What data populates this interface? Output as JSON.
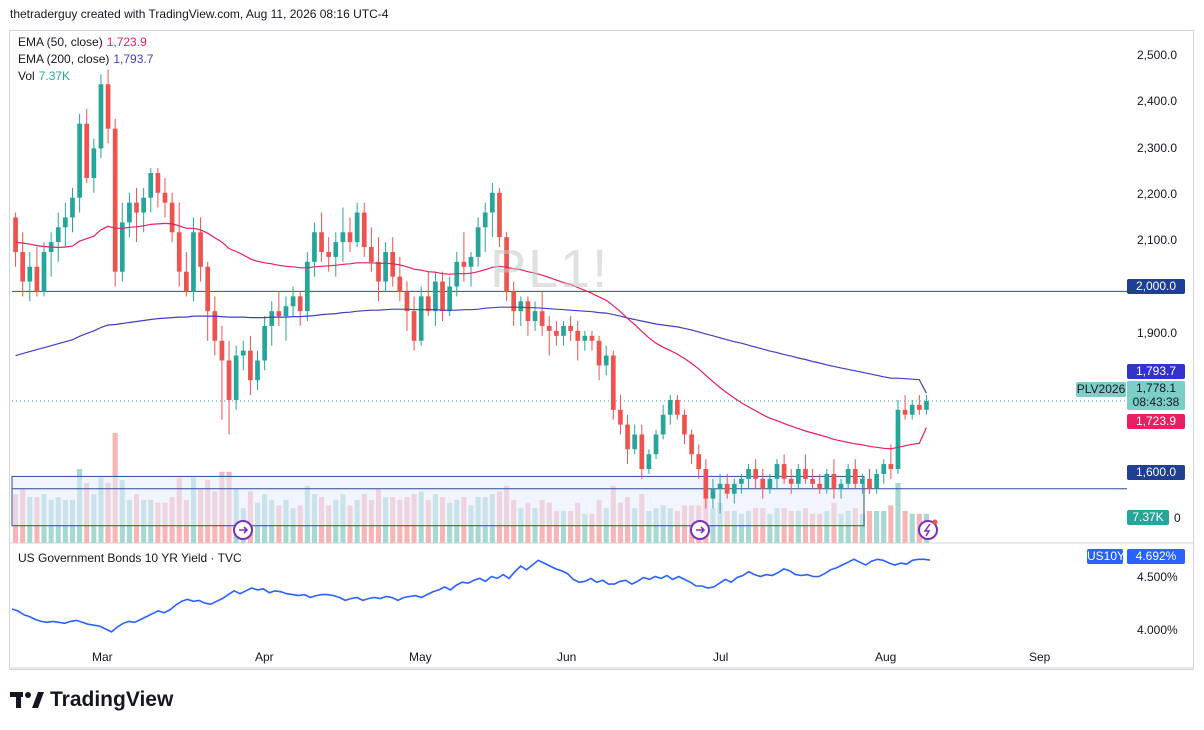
{
  "header": {
    "text": "thetraderguy created with TradingView.com, Aug 11, 2026 08:16 UTC-4"
  },
  "watermark": "PL1!",
  "legend": {
    "ema50": {
      "label": "EMA (50, close)",
      "value": "1,723.9",
      "color": "#e91e63"
    },
    "ema200": {
      "label": "EMA (200, close)",
      "value": "1,793.7",
      "color": "#3f3fc4"
    },
    "vol": {
      "label": "Vol",
      "value": "7.37K",
      "color": "#26a69a"
    }
  },
  "price_axis": {
    "ticks": [
      "2,500.0",
      "2,400.0",
      "2,300.0",
      "2,200.0",
      "2,100.0",
      "1,900.0"
    ],
    "tags": {
      "level_2000": "2,000.0",
      "ema200": "1,793.7",
      "last": "1,778.1",
      "countdown": "08:43:38",
      "ema50": "1,723.9",
      "level_1600": "1,600.0",
      "vol": "7.37K",
      "vol_suffix": "0"
    },
    "symbol_tag": "PLV2026"
  },
  "time_axis": {
    "labels": [
      "Mar",
      "Apr",
      "May",
      "Jun",
      "Jul",
      "Aug",
      "Sep"
    ]
  },
  "lower_pane": {
    "title": "US Government Bonds 10 YR Yield · TVC",
    "symbol_tag": "US10Y",
    "last_value": "4.692%",
    "ticks": [
      "4.500%",
      "4.000%"
    ]
  },
  "footer": {
    "brand": "TradingView"
  },
  "colors": {
    "up": "#26a69a",
    "down": "#ef5350",
    "vol_up": "#a7d8d2",
    "vol_down": "#f7b6b5",
    "ema50": "#e91e63",
    "ema200": "#3f3fc4",
    "hline": "#2a4d9b",
    "yield": "#2962ff"
  },
  "chart_data": [
    {
      "type": "candlestick",
      "symbol": "PL1!",
      "ylim": [
        1490,
        2530
      ],
      "y_ticks": [
        1600,
        1900,
        2000,
        2100,
        2200,
        2300,
        2400,
        2500
      ],
      "x_labels": [
        "Mar",
        "Apr",
        "May",
        "Jun",
        "Jul",
        "Aug",
        "Sep"
      ],
      "horizontal_lines": [
        2000,
        1600,
        1625,
        1525
      ],
      "ohlc": [
        [
          2150,
          2160,
          2050,
          2080
        ],
        [
          2080,
          2120,
          1990,
          2020
        ],
        [
          2020,
          2080,
          1980,
          2050
        ],
        [
          2050,
          2090,
          1990,
          2000
        ],
        [
          2000,
          2100,
          1990,
          2080
        ],
        [
          2080,
          2120,
          2030,
          2100
        ],
        [
          2100,
          2160,
          2060,
          2130
        ],
        [
          2130,
          2180,
          2090,
          2150
        ],
        [
          2150,
          2210,
          2120,
          2190
        ],
        [
          2190,
          2360,
          2160,
          2340
        ],
        [
          2340,
          2370,
          2220,
          2230
        ],
        [
          2230,
          2310,
          2200,
          2290
        ],
        [
          2290,
          2440,
          2270,
          2420
        ],
        [
          2420,
          2450,
          2300,
          2330
        ],
        [
          2330,
          2350,
          2010,
          2040
        ],
        [
          2040,
          2180,
          2020,
          2140
        ],
        [
          2140,
          2200,
          2110,
          2180
        ],
        [
          2180,
          2210,
          2100,
          2160
        ],
        [
          2160,
          2210,
          2120,
          2190
        ],
        [
          2190,
          2250,
          2160,
          2240
        ],
        [
          2240,
          2250,
          2170,
          2200
        ],
        [
          2200,
          2230,
          2150,
          2180
        ],
        [
          2180,
          2200,
          2100,
          2120
        ],
        [
          2120,
          2180,
          2010,
          2040
        ],
        [
          2040,
          2080,
          1990,
          2000
        ],
        [
          2000,
          2150,
          1980,
          2120
        ],
        [
          2120,
          2150,
          2020,
          2050
        ],
        [
          2050,
          2060,
          1900,
          1960
        ],
        [
          1960,
          1990,
          1870,
          1900
        ],
        [
          1900,
          1930,
          1740,
          1860
        ],
        [
          1860,
          1900,
          1710,
          1780
        ],
        [
          1780,
          1890,
          1760,
          1870
        ],
        [
          1870,
          1900,
          1840,
          1880
        ],
        [
          1880,
          1910,
          1790,
          1820
        ],
        [
          1820,
          1880,
          1800,
          1860
        ],
        [
          1860,
          1950,
          1840,
          1930
        ],
        [
          1930,
          1980,
          1890,
          1960
        ],
        [
          1960,
          2000,
          1930,
          1950
        ],
        [
          1950,
          1990,
          1900,
          1970
        ],
        [
          1970,
          2010,
          1950,
          1990
        ],
        [
          1990,
          2000,
          1930,
          1960
        ],
        [
          1960,
          2080,
          1940,
          2060
        ],
        [
          2060,
          2140,
          2030,
          2120
        ],
        [
          2120,
          2160,
          2060,
          2080
        ],
        [
          2080,
          2110,
          2040,
          2070
        ],
        [
          2070,
          2120,
          2030,
          2100
        ],
        [
          2100,
          2170,
          2060,
          2120
        ],
        [
          2120,
          2150,
          2080,
          2100
        ],
        [
          2100,
          2180,
          2090,
          2160
        ],
        [
          2160,
          2180,
          2070,
          2090
        ],
        [
          2090,
          2130,
          2040,
          2060
        ],
        [
          2060,
          2110,
          1980,
          2020
        ],
        [
          2020,
          2100,
          2000,
          2080
        ],
        [
          2080,
          2110,
          2010,
          2030
        ],
        [
          2030,
          2070,
          1980,
          2000
        ],
        [
          2000,
          2020,
          1920,
          1960
        ],
        [
          1960,
          1990,
          1880,
          1900
        ],
        [
          1900,
          2010,
          1890,
          1990
        ],
        [
          1990,
          2040,
          1950,
          1960
        ],
        [
          1960,
          2040,
          1930,
          2020
        ],
        [
          2020,
          2040,
          1940,
          1960
        ],
        [
          1960,
          2030,
          1950,
          2010
        ],
        [
          2010,
          2080,
          1990,
          2060
        ],
        [
          2060,
          2120,
          2020,
          2050
        ],
        [
          2050,
          2080,
          2010,
          2070
        ],
        [
          2070,
          2150,
          2050,
          2130
        ],
        [
          2130,
          2180,
          2080,
          2160
        ],
        [
          2160,
          2220,
          2110,
          2200
        ],
        [
          2200,
          2210,
          2090,
          2110
        ],
        [
          2110,
          2120,
          1980,
          2000
        ],
        [
          2000,
          2020,
          1930,
          1960
        ],
        [
          1960,
          1990,
          1930,
          1980
        ],
        [
          1980,
          1990,
          1910,
          1940
        ],
        [
          1940,
          1980,
          1920,
          1960
        ],
        [
          1960,
          2000,
          1910,
          1930
        ],
        [
          1930,
          1950,
          1870,
          1920
        ],
        [
          1920,
          1940,
          1890,
          1910
        ],
        [
          1910,
          1940,
          1890,
          1930
        ],
        [
          1930,
          1950,
          1900,
          1920
        ],
        [
          1920,
          1940,
          1860,
          1900
        ],
        [
          1900,
          1920,
          1880,
          1910
        ],
        [
          1910,
          1920,
          1880,
          1900
        ],
        [
          1900,
          1910,
          1820,
          1850
        ],
        [
          1850,
          1890,
          1830,
          1870
        ],
        [
          1870,
          1880,
          1740,
          1760
        ],
        [
          1760,
          1790,
          1710,
          1730
        ],
        [
          1730,
          1750,
          1650,
          1680
        ],
        [
          1680,
          1730,
          1670,
          1710
        ],
        [
          1710,
          1730,
          1620,
          1640
        ],
        [
          1640,
          1680,
          1630,
          1670
        ],
        [
          1670,
          1720,
          1660,
          1710
        ],
        [
          1710,
          1770,
          1700,
          1750
        ],
        [
          1750,
          1790,
          1730,
          1780
        ],
        [
          1780,
          1790,
          1740,
          1750
        ],
        [
          1750,
          1760,
          1690,
          1710
        ],
        [
          1710,
          1720,
          1650,
          1670
        ],
        [
          1670,
          1690,
          1620,
          1640
        ],
        [
          1640,
          1660,
          1560,
          1580
        ],
        [
          1580,
          1620,
          1560,
          1600
        ],
        [
          1600,
          1630,
          1550,
          1610
        ],
        [
          1610,
          1630,
          1580,
          1590
        ],
        [
          1590,
          1620,
          1570,
          1610
        ],
        [
          1610,
          1630,
          1590,
          1620
        ],
        [
          1620,
          1650,
          1600,
          1640
        ],
        [
          1640,
          1660,
          1600,
          1620
        ],
        [
          1620,
          1640,
          1580,
          1600
        ],
        [
          1600,
          1630,
          1590,
          1620
        ],
        [
          1620,
          1660,
          1600,
          1650
        ],
        [
          1650,
          1670,
          1610,
          1620
        ],
        [
          1620,
          1640,
          1590,
          1610
        ],
        [
          1610,
          1650,
          1600,
          1640
        ],
        [
          1640,
          1670,
          1610,
          1620
        ],
        [
          1620,
          1640,
          1600,
          1610
        ],
        [
          1610,
          1630,
          1590,
          1600
        ],
        [
          1600,
          1640,
          1590,
          1630
        ],
        [
          1630,
          1660,
          1580,
          1600
        ],
        [
          1600,
          1620,
          1580,
          1610
        ],
        [
          1610,
          1650,
          1600,
          1640
        ],
        [
          1640,
          1660,
          1600,
          1610
        ],
        [
          1610,
          1630,
          1590,
          1620
        ],
        [
          1620,
          1640,
          1590,
          1600
        ],
        [
          1600,
          1640,
          1590,
          1630
        ],
        [
          1630,
          1660,
          1610,
          1650
        ],
        [
          1650,
          1690,
          1620,
          1640
        ],
        [
          1640,
          1780,
          1630,
          1760
        ],
        [
          1760,
          1790,
          1740,
          1750
        ],
        [
          1750,
          1780,
          1740,
          1770
        ],
        [
          1770,
          1790,
          1750,
          1760
        ],
        [
          1760,
          1790,
          1750,
          1778
        ]
      ],
      "ema50": [
        2100,
        2098,
        2096,
        2093,
        2091,
        2090,
        2089,
        2090,
        2092,
        2102,
        2107,
        2112,
        2125,
        2132,
        2128,
        2128,
        2130,
        2131,
        2133,
        2136,
        2137,
        2138,
        2137,
        2133,
        2128,
        2128,
        2125,
        2118,
        2109,
        2100,
        2087,
        2081,
        2074,
        2066,
        2061,
        2058,
        2056,
        2053,
        2051,
        2050,
        2048,
        2048,
        2050,
        2051,
        2052,
        2053,
        2055,
        2056,
        2058,
        2058,
        2058,
        2057,
        2057,
        2056,
        2054,
        2050,
        2045,
        2043,
        2040,
        2039,
        2036,
        2035,
        2036,
        2036,
        2037,
        2040,
        2044,
        2049,
        2051,
        2049,
        2046,
        2044,
        2040,
        2037,
        2033,
        2028,
        2023,
        2018,
        2014,
        2008,
        2002,
        1996,
        1989,
        1982,
        1971,
        1959,
        1945,
        1933,
        1919,
        1906,
        1895,
        1887,
        1880,
        1873,
        1864,
        1854,
        1843,
        1830,
        1817,
        1805,
        1794,
        1784,
        1774,
        1766,
        1758,
        1750,
        1743,
        1738,
        1732,
        1727,
        1722,
        1717,
        1713,
        1709,
        1705,
        1700,
        1697,
        1694,
        1691,
        1689,
        1686,
        1684,
        1682,
        1681,
        1684,
        1687,
        1690,
        1692,
        1723.9
      ],
      "ema200": [
        1870,
        1874,
        1878,
        1882,
        1886,
        1890,
        1894,
        1898,
        1902,
        1909,
        1915,
        1920,
        1927,
        1932,
        1933,
        1935,
        1937,
        1939,
        1941,
        1943,
        1945,
        1946,
        1947,
        1948,
        1948,
        1950,
        1950,
        1950,
        1950,
        1949,
        1948,
        1948,
        1948,
        1947,
        1947,
        1947,
        1948,
        1948,
        1948,
        1949,
        1949,
        1950,
        1951,
        1953,
        1954,
        1955,
        1957,
        1958,
        1960,
        1961,
        1962,
        1962,
        1963,
        1964,
        1964,
        1964,
        1963,
        1963,
        1963,
        1963,
        1962,
        1962,
        1962,
        1963,
        1963,
        1964,
        1966,
        1967,
        1968,
        1968,
        1968,
        1968,
        1967,
        1967,
        1966,
        1965,
        1964,
        1963,
        1962,
        1961,
        1960,
        1959,
        1957,
        1956,
        1953,
        1950,
        1946,
        1943,
        1940,
        1937,
        1934,
        1932,
        1930,
        1928,
        1925,
        1922,
        1918,
        1914,
        1910,
        1906,
        1902,
        1898,
        1895,
        1891,
        1887,
        1883,
        1879,
        1876,
        1872,
        1869,
        1865,
        1862,
        1858,
        1855,
        1851,
        1848,
        1845,
        1842,
        1839,
        1836,
        1833,
        1830,
        1827,
        1824,
        1824,
        1823,
        1822,
        1821,
        1793.7
      ]
    },
    {
      "type": "line",
      "name": "US Government Bonds 10 YR Yield",
      "ylim": [
        3.75,
        4.85
      ],
      "y_ticks": [
        4.0,
        4.5
      ],
      "values": [
        4.18,
        4.16,
        4.12,
        4.1,
        4.07,
        4.05,
        4.04,
        4.05,
        4.04,
        4.03,
        4.05,
        4.06,
        4.04,
        4.02,
        4.01,
        4.0,
        3.97,
        3.94,
        3.99,
        4.03,
        4.05,
        4.04,
        4.07,
        4.1,
        4.13,
        4.16,
        4.14,
        4.17,
        4.22,
        4.26,
        4.28,
        4.26,
        4.27,
        4.24,
        4.23,
        4.26,
        4.29,
        4.33,
        4.37,
        4.34,
        4.37,
        4.4,
        4.38,
        4.39,
        4.35,
        4.37,
        4.36,
        4.34,
        4.33,
        4.32,
        4.33,
        4.3,
        4.32,
        4.33,
        4.33,
        4.32,
        4.3,
        4.27,
        4.29,
        4.3,
        4.27,
        4.29,
        4.3,
        4.29,
        4.31,
        4.3,
        4.27,
        4.3,
        4.31,
        4.32,
        4.3,
        4.33,
        4.36,
        4.38,
        4.41,
        4.38,
        4.43,
        4.46,
        4.45,
        4.48,
        4.5,
        4.47,
        4.52,
        4.5,
        4.54,
        4.5,
        4.57,
        4.63,
        4.59,
        4.64,
        4.69,
        4.66,
        4.63,
        4.6,
        4.58,
        4.55,
        4.49,
        4.46,
        4.47,
        4.5,
        4.46,
        4.48,
        4.44,
        4.44,
        4.47,
        4.48,
        4.44,
        4.47,
        4.51,
        4.49,
        4.52,
        4.5,
        4.53,
        4.49,
        4.52,
        4.49,
        4.46,
        4.42,
        4.42,
        4.4,
        4.41,
        4.45,
        4.49,
        4.46,
        4.51,
        4.53,
        4.57,
        4.54,
        4.52,
        4.54,
        4.53,
        4.56,
        4.6,
        4.58,
        4.54,
        4.53,
        4.54,
        4.52,
        4.52,
        4.55,
        4.59,
        4.61,
        4.64,
        4.67,
        4.7,
        4.67,
        4.64,
        4.68,
        4.7,
        4.69,
        4.66,
        4.64,
        4.66,
        4.65,
        4.69,
        4.7,
        4.7,
        4.692
      ]
    }
  ]
}
